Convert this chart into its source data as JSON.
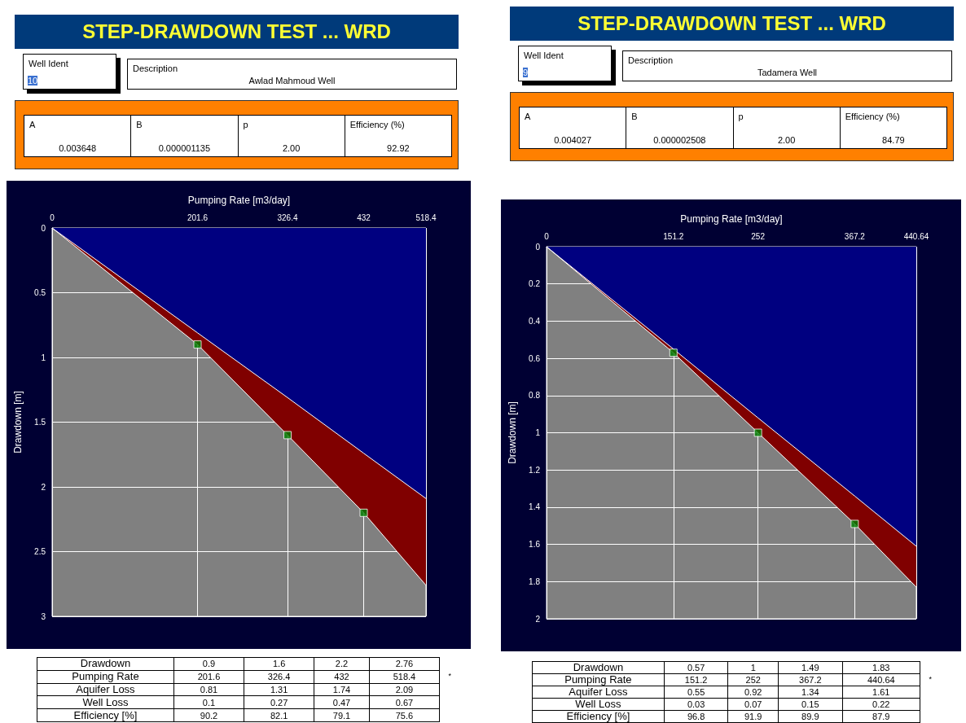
{
  "chart_data": [
    {
      "type": "other",
      "title": "STEP-DRAWDOWN TEST ... WRD",
      "annotations": [
        "Well Ident",
        "10",
        "Description",
        "Awlad Mahmoud Well",
        "A",
        "0.003648",
        "B",
        "0.000001135",
        "p",
        "2.00",
        "Efficiency (%)",
        "92.92"
      ]
    },
    {
      "type": "other",
      "title": "STEP-DRAWDOWN TEST ... WRD",
      "annotations": [
        "Well Ident",
        "9",
        "Description",
        "Tadamera Well",
        "A",
        "0.004027",
        "B",
        "0.000002508",
        "p",
        "2.00",
        "Efficiency (%)",
        "84.79"
      ]
    },
    {
      "type": "area",
      "xlabel": "Pumping Rate [m3/day]",
      "ylabel": "Drawdown [m]",
      "xlim": [
        0,
        518.4
      ],
      "xticks": [
        0,
        201.6,
        326.4,
        432,
        518.4
      ],
      "ylim": [
        3,
        0
      ],
      "yticks": [
        0,
        0.5,
        1,
        1.5,
        2,
        2.5,
        3
      ],
      "grid": true,
      "series": [
        {
          "type": "area",
          "color": "#800000",
          "x": [
            0,
            201.6,
            326.4,
            432,
            518.4
          ],
          "values": [
            0,
            0.9,
            1.6,
            2.2,
            2.76
          ]
        },
        {
          "type": "area",
          "color": "#000080",
          "x": [
            0,
            201.6,
            326.4,
            432,
            518.4
          ],
          "values": [
            0,
            0.81,
            1.31,
            1.74,
            2.09
          ]
        },
        {
          "type": "scatter",
          "color": "#008000",
          "marker": "square",
          "x": [
            201.6,
            326.4,
            432
          ],
          "values": [
            0.9,
            1.6,
            2.2
          ]
        }
      ]
    },
    {
      "type": "area",
      "xlabel": "Pumping Rate [m3/day]",
      "ylabel": "Drawdown [m]",
      "xlim": [
        0,
        440.64
      ],
      "xticks": [
        0,
        151.2,
        252,
        367.2,
        440.64
      ],
      "ylim": [
        2,
        0
      ],
      "yticks": [
        0,
        0.2,
        0.4,
        0.6,
        0.8,
        1,
        1.2,
        1.4,
        1.6,
        1.8,
        2
      ],
      "grid": true,
      "series": [
        {
          "type": "area",
          "color": "#800000",
          "x": [
            0,
            151.2,
            252,
            367.2,
            440.64
          ],
          "values": [
            0,
            0.57,
            1,
            1.49,
            1.83
          ]
        },
        {
          "type": "area",
          "color": "#000080",
          "x": [
            0,
            151.2,
            252,
            367.2,
            440.64
          ],
          "values": [
            0,
            0.55,
            0.92,
            1.34,
            1.61
          ]
        },
        {
          "type": "scatter",
          "color": "#008000",
          "marker": "square",
          "x": [
            151.2,
            252,
            367.2
          ],
          "values": [
            0.57,
            1,
            1.49
          ]
        }
      ]
    },
    {
      "type": "other",
      "annotations": [
        "Drawdown",
        "0.9",
        "1.6",
        "2.2",
        "2.76",
        "Pumping Rate",
        "201.6",
        "326.4",
        "432",
        "518.4",
        "Aquifer Loss",
        "0.81",
        "1.31",
        "1.74",
        "2.09",
        "Well Loss",
        "0.1",
        "0.27",
        "0.47",
        "0.67",
        "Efficiency [%]",
        "90.2",
        "82.1",
        "79.1",
        "75.6",
        "*"
      ]
    },
    {
      "type": "other",
      "annotations": [
        "Drawdown",
        "0.57",
        "1",
        "1.49",
        "1.83",
        "Pumping Rate",
        "151.2",
        "252",
        "367.2",
        "440.64",
        "Aquifer Loss",
        "0.55",
        "0.92",
        "1.34",
        "1.61",
        "Well Loss",
        "0.03",
        "0.07",
        "0.15",
        "0.22",
        "Efficiency [%]",
        "96.8",
        "91.9",
        "89.9",
        "87.9",
        "*"
      ]
    }
  ]
}
